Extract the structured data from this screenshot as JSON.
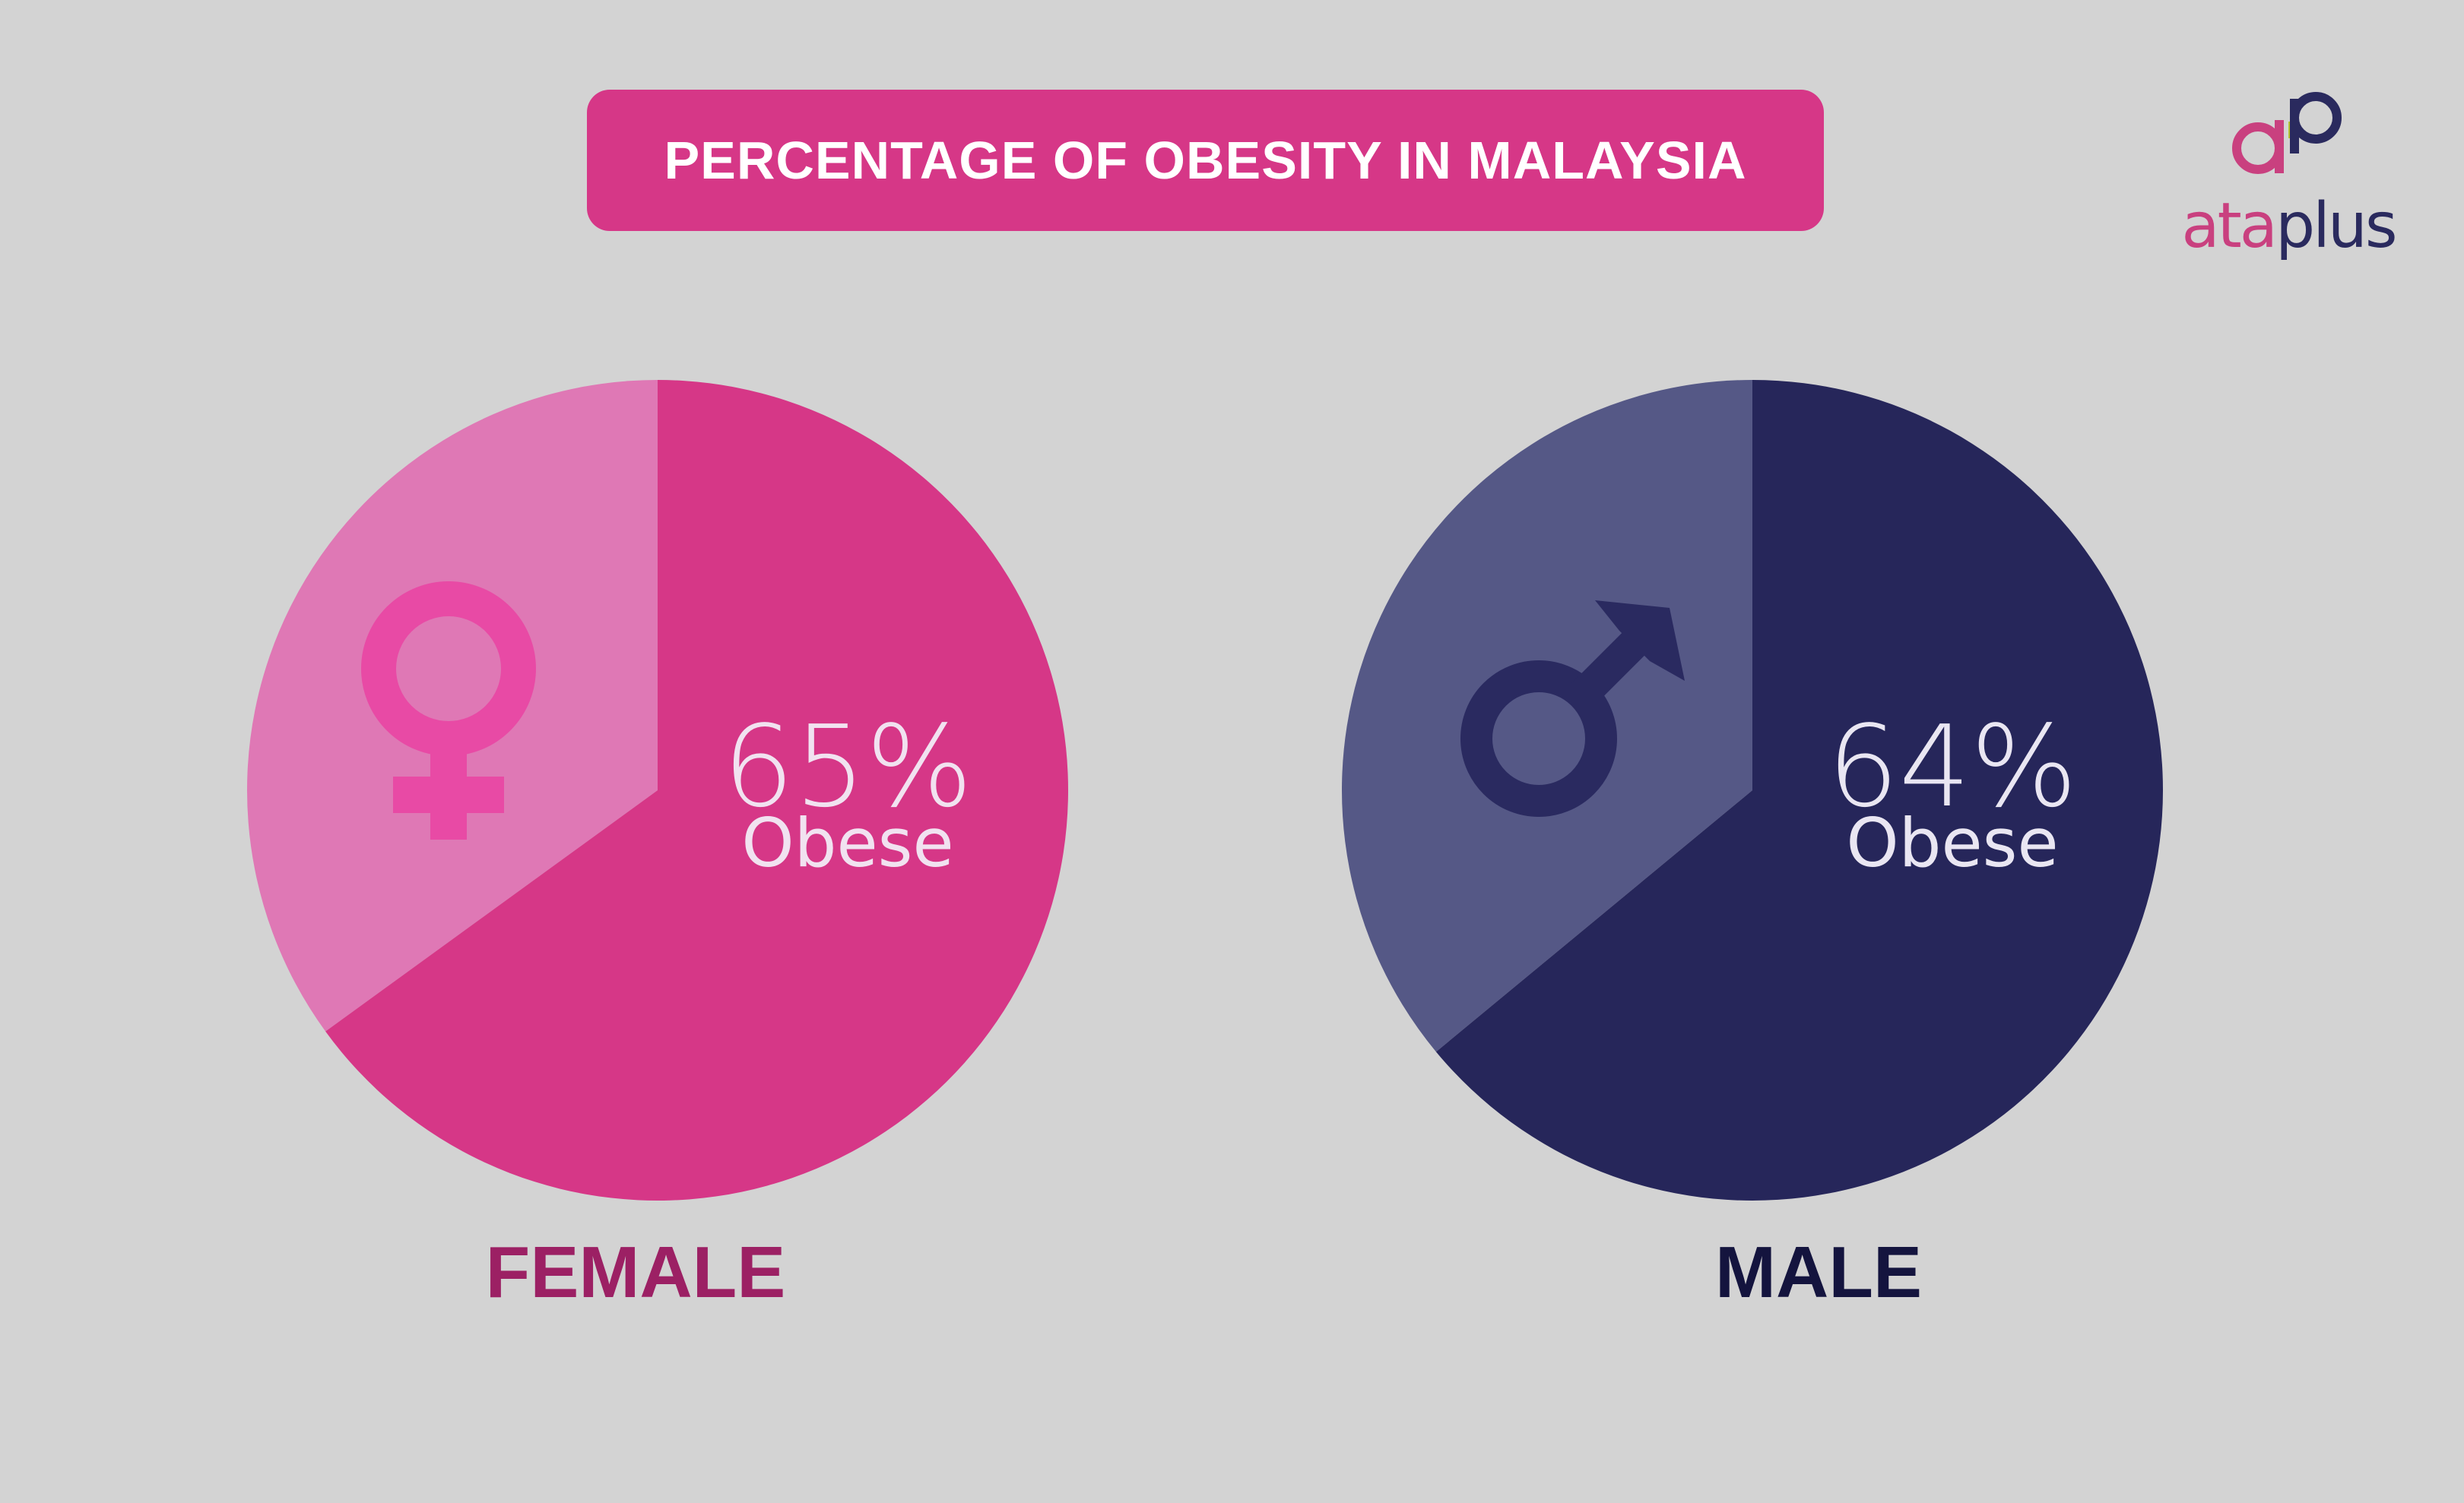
{
  "title": "PERCENTAGE OF OBESITY IN MALAYSIA",
  "logo": {
    "text_main": "ata",
    "text_plus": "plus"
  },
  "chart_data": [
    {
      "type": "pie",
      "category": "FEMALE",
      "obese_percent": 65,
      "value_label": "65%",
      "value_caption": "Obese",
      "colors": {
        "obese": "#d63787",
        "rest": "#df78b5",
        "icon": "#e84aa5",
        "label": "#9c2064"
      }
    },
    {
      "type": "pie",
      "category": "MALE",
      "obese_percent": 64,
      "value_label": "64%",
      "value_caption": "Obese",
      "colors": {
        "obese": "#26265a",
        "rest": "#555886",
        "icon": "#2a2a60",
        "label": "#14143e"
      }
    }
  ]
}
